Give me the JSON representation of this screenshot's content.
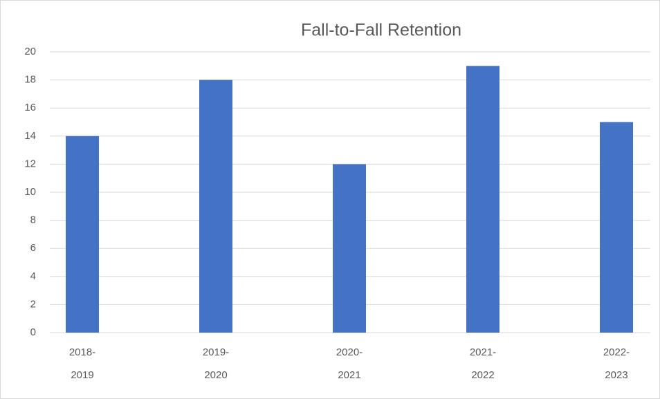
{
  "chart_data": {
    "type": "bar",
    "title": "Fall-to-Fall Retention",
    "categories": [
      "2018-2019",
      "2019-2020",
      "2020-2021",
      "2021-2022",
      "2022-2023"
    ],
    "values": [
      14,
      18,
      12,
      19,
      15
    ],
    "color": "#4472c4",
    "ylim": [
      0,
      20
    ],
    "yticks": [
      0,
      2,
      4,
      6,
      8,
      10,
      12,
      14,
      16,
      18,
      20
    ],
    "grid": true
  }
}
